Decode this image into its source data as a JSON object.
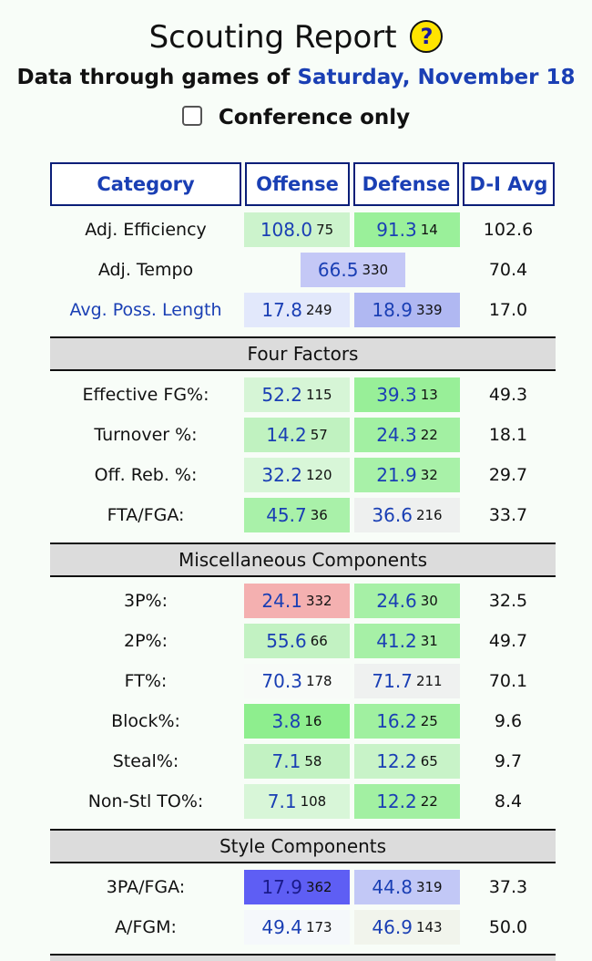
{
  "header": {
    "title": "Scouting Report",
    "help_icon": "?",
    "subtitle_prefix": "Data through games of",
    "subtitle_date": "Saturday, November 18",
    "conference_only_label": "Conference only"
  },
  "columns": {
    "category": "Category",
    "offense": "Offense",
    "defense": "Defense",
    "avg": "D-I Avg"
  },
  "top_rows": [
    {
      "label": "Adj. Efficiency",
      "off_val": "108.0",
      "off_rank": "75",
      "def_val": "91.3",
      "def_rank": "14",
      "avg": "102.6"
    },
    {
      "label": "Adj. Tempo",
      "val": "66.5",
      "rank": "330",
      "avg": "70.4"
    },
    {
      "label": "Avg. Poss. Length",
      "off_val": "17.8",
      "off_rank": "249",
      "def_val": "18.9",
      "def_rank": "339",
      "avg": "17.0"
    }
  ],
  "sections": [
    {
      "title": "Four Factors",
      "rows": [
        {
          "label": "Effective FG%:",
          "off_val": "52.2",
          "off_rank": "115",
          "def_val": "39.3",
          "def_rank": "13",
          "avg": "49.3"
        },
        {
          "label": "Turnover %:",
          "off_val": "14.2",
          "off_rank": "57",
          "def_val": "24.3",
          "def_rank": "22",
          "avg": "18.1"
        },
        {
          "label": "Off. Reb. %:",
          "off_val": "32.2",
          "off_rank": "120",
          "def_val": "21.9",
          "def_rank": "32",
          "avg": "29.7"
        },
        {
          "label": "FTA/FGA:",
          "off_val": "45.7",
          "off_rank": "36",
          "def_val": "36.6",
          "def_rank": "216",
          "avg": "33.7"
        }
      ]
    },
    {
      "title": "Miscellaneous Components",
      "rows": [
        {
          "label": "3P%:",
          "off_val": "24.1",
          "off_rank": "332",
          "def_val": "24.6",
          "def_rank": "30",
          "avg": "32.5"
        },
        {
          "label": "2P%:",
          "off_val": "55.6",
          "off_rank": "66",
          "def_val": "41.2",
          "def_rank": "31",
          "avg": "49.7"
        },
        {
          "label": "FT%:",
          "off_val": "70.3",
          "off_rank": "178",
          "def_val": "71.7",
          "def_rank": "211",
          "avg": "70.1"
        },
        {
          "label": "Block%:",
          "off_val": "3.8",
          "off_rank": "16",
          "def_val": "16.2",
          "def_rank": "25",
          "avg": "9.6"
        },
        {
          "label": "Steal%:",
          "off_val": "7.1",
          "off_rank": "58",
          "def_val": "12.2",
          "def_rank": "65",
          "avg": "9.7"
        },
        {
          "label": "Non-Stl TO%:",
          "off_val": "7.1",
          "off_rank": "108",
          "def_val": "12.2",
          "def_rank": "22",
          "avg": "8.4"
        }
      ]
    },
    {
      "title": "Style Components",
      "rows": [
        {
          "label": "3PA/FGA:",
          "off_val": "17.9",
          "off_rank": "362",
          "def_val": "44.8",
          "def_rank": "319",
          "avg": "37.3"
        },
        {
          "label": "A/FGM:",
          "off_val": "49.4",
          "off_rank": "173",
          "def_val": "46.9",
          "def_rank": "143",
          "avg": "50.0"
        }
      ]
    }
  ],
  "colors": {
    "link": "#1a3fb4",
    "header_border": "#0a1e78",
    "section_bg": "#dcdcdc",
    "help_icon_bg": "#ffe400"
  }
}
